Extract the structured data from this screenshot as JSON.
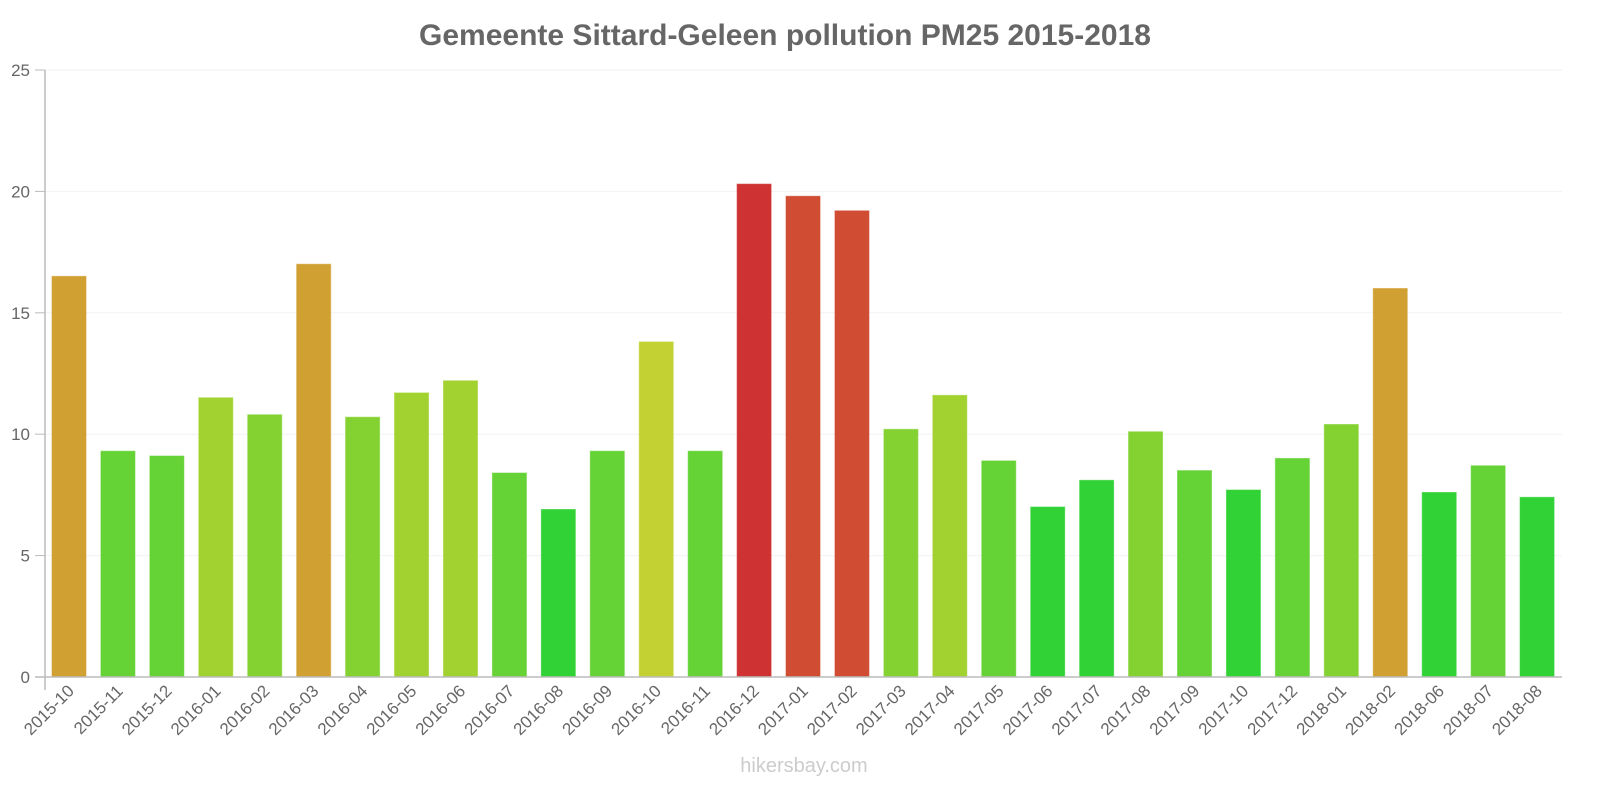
{
  "chart_data": {
    "type": "bar",
    "title": "Gemeente Sittard-Geleen pollution PM25 2015-2018",
    "xlabel": "",
    "ylabel": "",
    "ylim": [
      0,
      25
    ],
    "yticks": [
      0,
      5,
      10,
      15,
      20,
      25
    ],
    "grid": true,
    "categories": [
      "2015-10",
      "2015-11",
      "2015-12",
      "2016-01",
      "2016-02",
      "2016-03",
      "2016-04",
      "2016-05",
      "2016-06",
      "2016-07",
      "2016-08",
      "2016-09",
      "2016-10",
      "2016-11",
      "2016-12",
      "2017-01",
      "2017-02",
      "2017-03",
      "2017-04",
      "2017-05",
      "2017-06",
      "2017-07",
      "2017-08",
      "2017-09",
      "2017-10",
      "2017-12",
      "2018-01",
      "2018-02",
      "2018-06",
      "2018-07",
      "2018-08"
    ],
    "values": [
      16.5,
      9.3,
      9.1,
      11.5,
      10.8,
      17.0,
      10.7,
      11.7,
      12.2,
      8.4,
      6.9,
      9.3,
      13.8,
      9.3,
      20.3,
      19.8,
      19.2,
      10.2,
      11.6,
      8.9,
      7.0,
      8.1,
      10.1,
      8.5,
      7.7,
      9.0,
      10.4,
      16.0,
      7.6,
      8.7,
      7.4
    ],
    "colors": [
      "#dba835",
      "#6add38",
      "#6add38",
      "#abdd33",
      "#8bdd35",
      "#dba835",
      "#8bdd35",
      "#abdd33",
      "#abdd33",
      "#6add38",
      "#33dd38",
      "#6add38",
      "#cddd35",
      "#6add38",
      "#d93535",
      "#db5035",
      "#db5035",
      "#8bdd35",
      "#abdd33",
      "#6add38",
      "#33dd38",
      "#33dd38",
      "#8bdd35",
      "#6add38",
      "#33dd38",
      "#6add38",
      "#8bdd35",
      "#dba835",
      "#33dd38",
      "#6add38",
      "#33dd38"
    ]
  },
  "watermark": "hikersbay.com"
}
